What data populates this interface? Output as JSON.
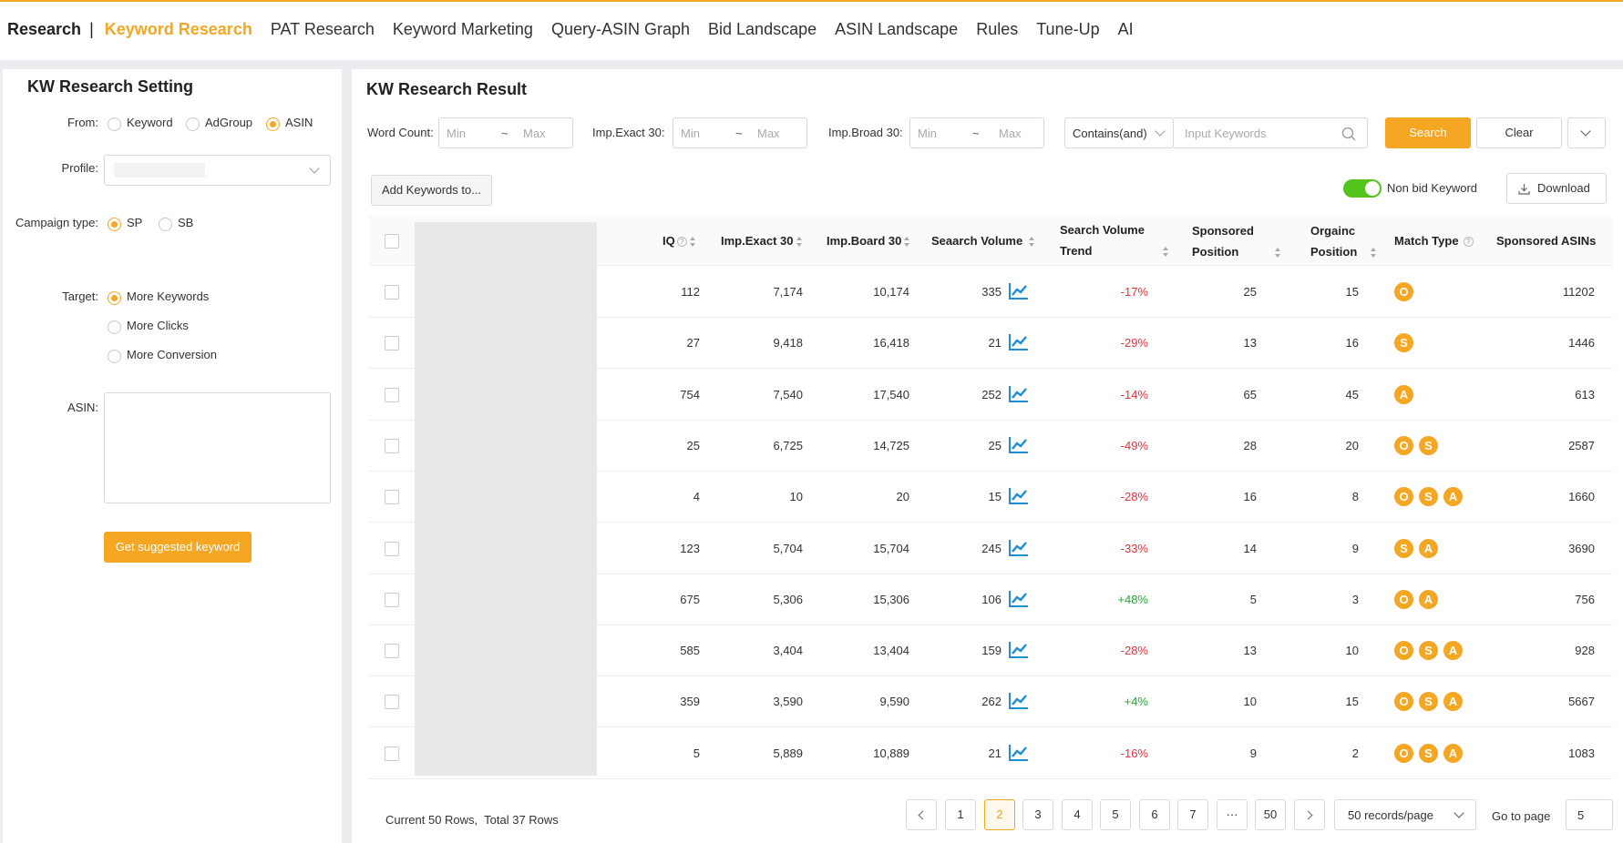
{
  "nav": {
    "brand": "Research",
    "separator": "|",
    "items": [
      {
        "label": "Keyword Research",
        "active": true
      },
      {
        "label": "PAT Research",
        "active": false
      },
      {
        "label": "Keyword Marketing",
        "active": false
      },
      {
        "label": "Query-ASIN Graph",
        "active": false
      },
      {
        "label": "Bid Landscape",
        "active": false
      },
      {
        "label": "ASIN Landscape",
        "active": false
      },
      {
        "label": "Rules",
        "active": false
      },
      {
        "label": "Tune-Up",
        "active": false
      },
      {
        "label": "AI",
        "active": false
      }
    ]
  },
  "settings": {
    "title": "KW Research Setting",
    "from_label": "From:",
    "from_options": [
      {
        "label": "Keyword",
        "checked": false
      },
      {
        "label": "AdGroup",
        "checked": false
      },
      {
        "label": "ASIN",
        "checked": true
      }
    ],
    "profile_label": "Profile:",
    "campaign_label": "Campaign type:",
    "campaign_options": [
      {
        "label": "SP",
        "checked": true
      },
      {
        "label": "SB",
        "checked": false
      }
    ],
    "target_label": "Target:",
    "target_options": [
      {
        "label": "More Keywords",
        "checked": true
      },
      {
        "label": "More Clicks",
        "checked": false
      },
      {
        "label": "More Conversion",
        "checked": false
      }
    ],
    "asin_label": "ASIN:",
    "suggest_button": "Get suggested keyword"
  },
  "result": {
    "title": "KW Research Result",
    "word_count_label": "Word Count:",
    "imp_exact_label": "Imp.Exact 30:",
    "imp_broad_label": "Imp.Broad 30:",
    "min_placeholder": "Min",
    "max_placeholder": "Max",
    "tilde": "~",
    "contains_value": "Contains(and)",
    "keyword_placeholder": "Input Keywords",
    "search_button": "Search",
    "clear_button": "Clear",
    "add_keywords_button": "Add Keywords to...",
    "non_bid_label": "Non bid Keyword",
    "non_bid_enabled": true,
    "download_button": "Download"
  },
  "table": {
    "headers": {
      "iq": "IQ",
      "imp_exact": "Imp.Exact 30",
      "imp_board": "Imp.Board 30",
      "search_volume": "Seaarch Volume",
      "sv_trend_1": "Search Volume",
      "sv_trend_2": "Trend",
      "sponsored_position_1": "Sponsored",
      "sponsored_position_2": "Position",
      "organic_position_1": "Orgainc",
      "organic_position_2": "Position",
      "match_type": "Match Type",
      "sponsored_asins": "Sponsored ASINs"
    },
    "rows": [
      {
        "iq": "112",
        "imp_exact": "7,174",
        "imp_board": "10,174",
        "volume": "335",
        "trend": "-17%",
        "sponsored": "25",
        "organic": "15",
        "match": [
          "O"
        ],
        "asins": "11202"
      },
      {
        "iq": "27",
        "imp_exact": "9,418",
        "imp_board": "16,418",
        "volume": "21",
        "trend": "-29%",
        "sponsored": "13",
        "organic": "16",
        "match": [
          "S"
        ],
        "asins": "1446"
      },
      {
        "iq": "754",
        "imp_exact": "7,540",
        "imp_board": "17,540",
        "volume": "252",
        "trend": "-14%",
        "sponsored": "65",
        "organic": "45",
        "match": [
          "A"
        ],
        "asins": "613"
      },
      {
        "iq": "25",
        "imp_exact": "6,725",
        "imp_board": "14,725",
        "volume": "25",
        "trend": "-49%",
        "sponsored": "28",
        "organic": "20",
        "match": [
          "O",
          "S"
        ],
        "asins": "2587"
      },
      {
        "iq": "4",
        "imp_exact": "10",
        "imp_board": "20",
        "volume": "15",
        "trend": "-28%",
        "sponsored": "16",
        "organic": "8",
        "match": [
          "O",
          "S",
          "A"
        ],
        "asins": "1660"
      },
      {
        "iq": "123",
        "imp_exact": "5,704",
        "imp_board": "15,704",
        "volume": "245",
        "trend": "-33%",
        "sponsored": "14",
        "organic": "9",
        "match": [
          "S",
          "A"
        ],
        "asins": "3690"
      },
      {
        "iq": "675",
        "imp_exact": "5,306",
        "imp_board": "15,306",
        "volume": "106",
        "trend": "+48%",
        "sponsored": "5",
        "organic": "3",
        "match": [
          "O",
          "A"
        ],
        "asins": "756"
      },
      {
        "iq": "585",
        "imp_exact": "3,404",
        "imp_board": "13,404",
        "volume": "159",
        "trend": "-28%",
        "sponsored": "13",
        "organic": "10",
        "match": [
          "O",
          "S",
          "A"
        ],
        "asins": "928"
      },
      {
        "iq": "359",
        "imp_exact": "3,590",
        "imp_board": "9,590",
        "volume": "262",
        "trend": "+4%",
        "sponsored": "10",
        "organic": "15",
        "match": [
          "O",
          "S",
          "A"
        ],
        "asins": "5667"
      },
      {
        "iq": "5",
        "imp_exact": "5,889",
        "imp_board": "10,889",
        "volume": "21",
        "trend": "-16%",
        "sponsored": "9",
        "organic": "2",
        "match": [
          "O",
          "S",
          "A"
        ],
        "asins": "1083"
      }
    ]
  },
  "footer": {
    "summary": "Current 50 Rows,  Total 37 Rows",
    "pages": [
      "1",
      "2",
      "3",
      "4",
      "5",
      "6",
      "7",
      "···",
      "50"
    ],
    "current_page": "2",
    "page_size": "50 records/page",
    "goto_label": "Go to page",
    "goto_value": "5"
  },
  "colors": {
    "accent": "#f5a623",
    "negative": "#e0353b",
    "positive": "#2aa53b",
    "toggle_on": "#52c41a",
    "trend_icon": "#1b8fd8"
  }
}
